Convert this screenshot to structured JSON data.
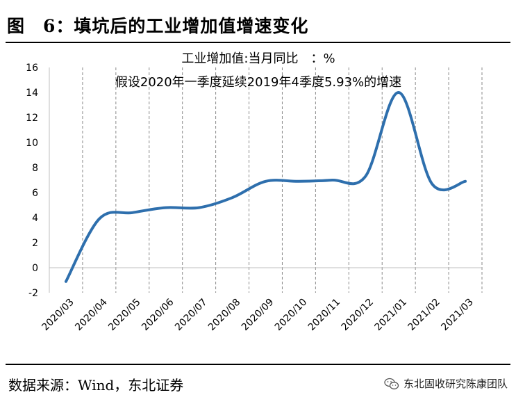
{
  "figure": {
    "title": "图　6：填坑后的工业增加值增速变化",
    "source": "数据来源：Wind，东北证券",
    "watermark": "东北固收研究陈康团队"
  },
  "chart_data": {
    "type": "line",
    "annotations": [
      "工业增加值:当月同比　：%",
      "假设2020年一季度延续2019年4季度5.93%的增速"
    ],
    "categories": [
      "2020/03",
      "2020/04",
      "2020/05",
      "2020/06",
      "2020/07",
      "2020/08",
      "2020/09",
      "2020/10",
      "2020/11",
      "2020/12",
      "2021/01",
      "2021/02",
      "2021/03"
    ],
    "series": [
      {
        "values": [
          -1.1,
          3.9,
          4.4,
          4.8,
          4.8,
          5.6,
          6.9,
          6.9,
          7.0,
          7.3,
          14.0,
          6.7,
          6.9
        ],
        "color": "#2e6fad"
      }
    ],
    "ylim": [
      -2,
      16
    ],
    "yticks": [
      -2,
      0,
      2,
      4,
      6,
      8,
      10,
      12,
      14,
      16
    ],
    "grid": "vertical-dashed",
    "legend": "none"
  }
}
